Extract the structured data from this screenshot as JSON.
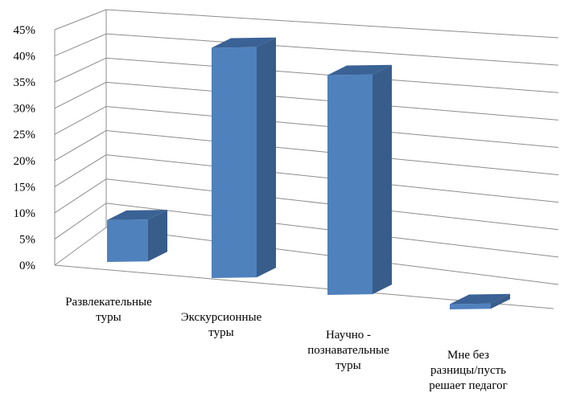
{
  "chart_data": {
    "type": "bar",
    "title": "",
    "xlabel": "",
    "ylabel": "",
    "categories": [
      [
        "Развлекательные",
        "туры"
      ],
      [
        "Экскурсионные",
        "туры"
      ],
      [
        "Научно -",
        "познавательные",
        "туры"
      ],
      [
        "Мне без",
        "разницы/пусть",
        "решает педагог"
      ]
    ],
    "values": [
      0.08,
      0.44,
      0.42,
      0.01
    ],
    "ylim": [
      0,
      0.45
    ],
    "yticks": [
      "0%",
      "5%",
      "10%",
      "15%",
      "20%",
      "25%",
      "30%",
      "35%",
      "40%",
      "45%"
    ],
    "grid": true,
    "legend": "none",
    "style": "3d-columns",
    "colors": {
      "front": "#4f81bd",
      "side": "#385d8a",
      "top": "#3a6295",
      "grid": "#8c8c8c",
      "text": "#000000"
    }
  }
}
